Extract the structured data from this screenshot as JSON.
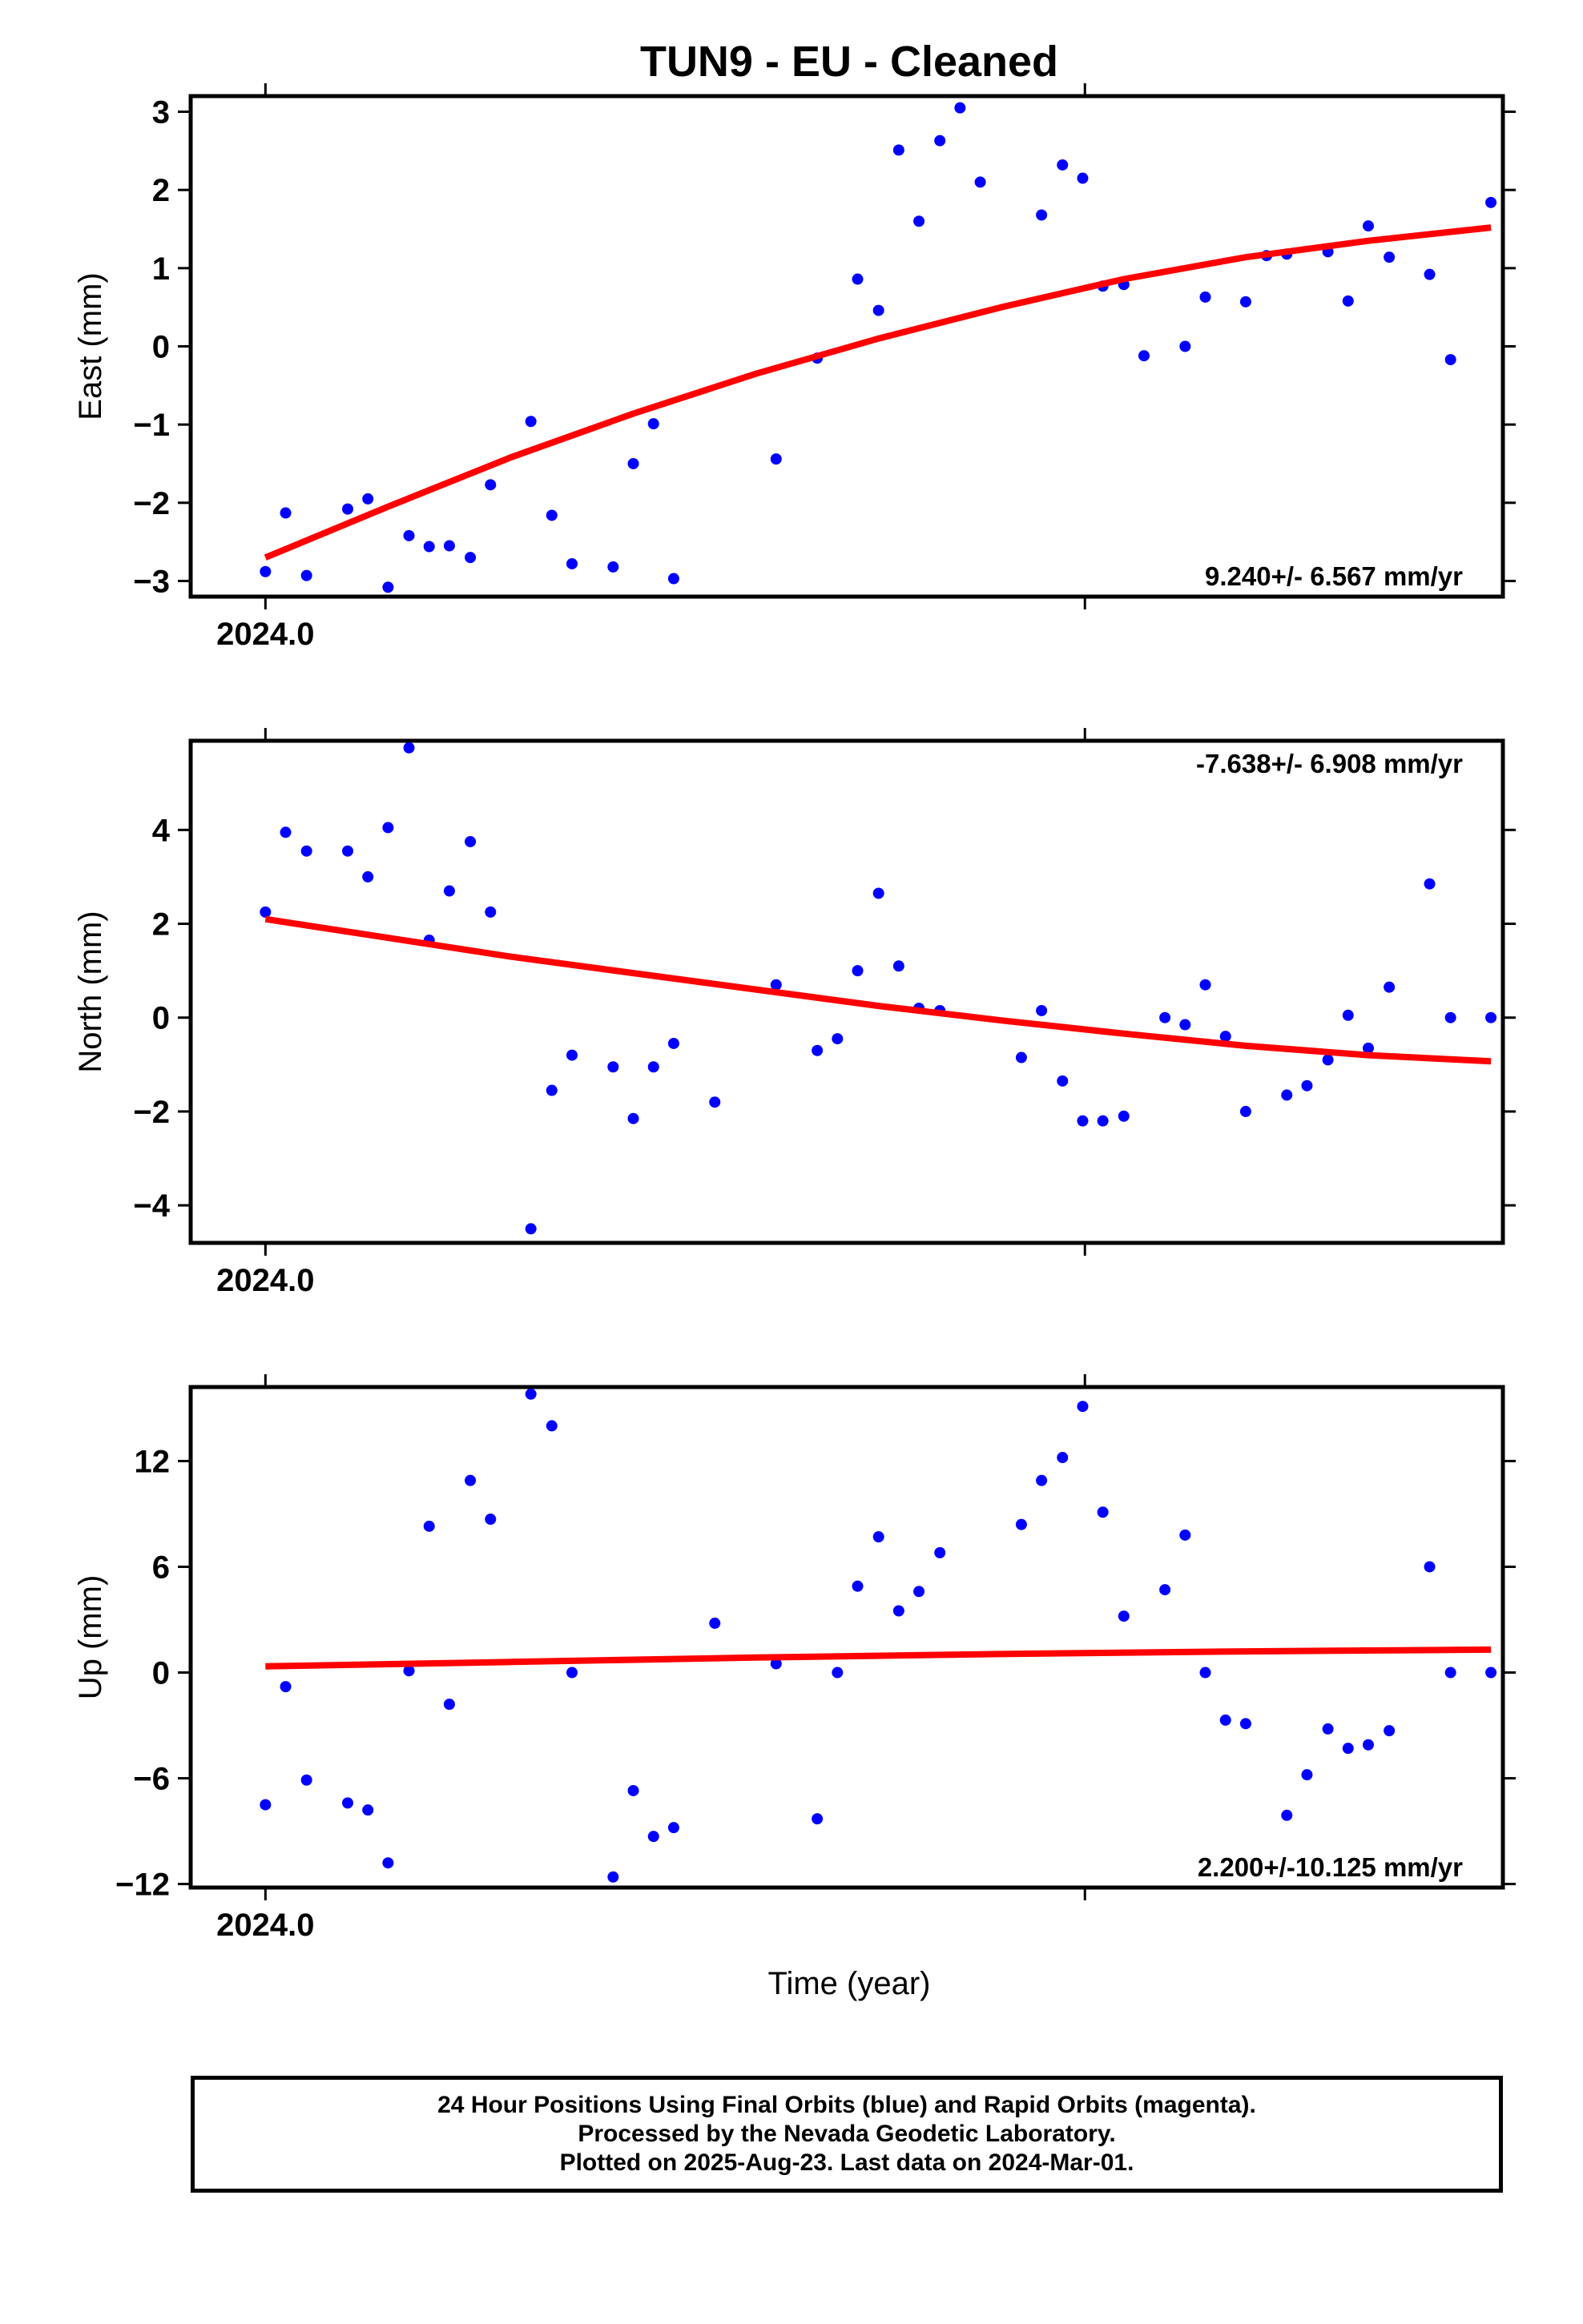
{
  "title": "TUN9  - EU - Cleaned",
  "xlabel": "Time (year)",
  "x_tick_label": "2024.0",
  "colors": {
    "points": "#0000ff",
    "fit": "#ff0000",
    "axes": "#000000"
  },
  "caption": [
    "24 Hour Positions Using Final Orbits (blue) and Rapid Orbits (magenta).",
    "Processed by the Nevada Geodetic Laboratory.",
    "Plotted on 2025-Aug-23. Last data on 2024-Mar-01."
  ],
  "chart_data": [
    {
      "type": "scatter",
      "name": "east",
      "ylabel": "East (mm)",
      "rate_label": "9.240+/- 6.567 mm/yr",
      "rate_position": "bottom-right",
      "xlim": [
        2023.99,
        2024.1655
      ],
      "ylim": [
        -3.2,
        3.2
      ],
      "yticks": [
        -3,
        -2,
        -1,
        0,
        1,
        2,
        3
      ],
      "x_ticks_unlabeled": [
        2024.1096
      ],
      "points": {
        "x": [
          2024.0,
          2024.0027,
          2024.0055,
          2024.011,
          2024.0137,
          2024.0164,
          2024.0192,
          2024.0219,
          2024.0246,
          2024.0274,
          2024.0301,
          2024.0355,
          2024.0383,
          2024.041,
          2024.0465,
          2024.0492,
          2024.0519,
          2024.0546,
          2024.0683,
          2024.0738,
          2024.0792,
          2024.082,
          2024.0847,
          2024.0874,
          2024.0902,
          2024.0929,
          2024.0956,
          2024.1038,
          2024.1066,
          2024.1093,
          2024.112,
          2024.1148,
          2024.1175,
          2024.123,
          2024.1257,
          2024.1311,
          2024.1339,
          2024.1366,
          2024.1421,
          2024.1448,
          2024.1475,
          2024.1503,
          2024.1557,
          2024.1585,
          2024.1639
        ],
        "y": [
          -2.88,
          -2.13,
          -2.93,
          -2.08,
          -1.95,
          -3.08,
          -2.42,
          -2.56,
          -2.55,
          -2.7,
          -1.77,
          -0.96,
          -2.16,
          -2.78,
          -2.82,
          -1.5,
          -0.99,
          -2.97,
          -1.44,
          -0.15,
          0.86,
          0.46,
          2.51,
          1.6,
          2.63,
          3.05,
          2.1,
          1.68,
          2.32,
          2.15,
          0.77,
          0.79,
          -0.12,
          0.0,
          0.63,
          0.57,
          1.16,
          1.18,
          1.21,
          0.58,
          1.54,
          1.14,
          0.92,
          -0.17,
          1.84
        ]
      },
      "fit": {
        "x": [
          2024.0,
          2024.0164,
          2024.0328,
          2024.0492,
          2024.0656,
          2024.082,
          2024.0984,
          2024.1148,
          2024.1311,
          2024.1475,
          2024.1639
        ],
        "y": [
          -2.7,
          -2.05,
          -1.42,
          -0.86,
          -0.35,
          0.1,
          0.5,
          0.86,
          1.14,
          1.35,
          1.52
        ]
      }
    },
    {
      "type": "scatter",
      "name": "north",
      "ylabel": "North (mm)",
      "rate_label": "-7.638+/- 6.908 mm/yr",
      "rate_position": "top-right",
      "xlim": [
        2023.99,
        2024.1655
      ],
      "ylim": [
        -4.8,
        5.9
      ],
      "yticks": [
        -4,
        -2,
        0,
        2,
        4
      ],
      "x_ticks_unlabeled": [
        2024.1096
      ],
      "points": {
        "x": [
          2024.0,
          2024.0027,
          2024.0055,
          2024.011,
          2024.0137,
          2024.0164,
          2024.0192,
          2024.0219,
          2024.0246,
          2024.0274,
          2024.0301,
          2024.0355,
          2024.0383,
          2024.041,
          2024.0465,
          2024.0492,
          2024.0519,
          2024.0546,
          2024.0601,
          2024.0683,
          2024.0738,
          2024.0765,
          2024.0792,
          2024.082,
          2024.0847,
          2024.0874,
          2024.0902,
          2024.1011,
          2024.1038,
          2024.1066,
          2024.1093,
          2024.112,
          2024.1148,
          2024.1203,
          2024.123,
          2024.1257,
          2024.1284,
          2024.1311,
          2024.1366,
          2024.1393,
          2024.1421,
          2024.1448,
          2024.1475,
          2024.1503,
          2024.1557,
          2024.1585,
          2024.1639
        ],
        "y": [
          2.25,
          3.95,
          3.55,
          3.55,
          3.0,
          4.05,
          5.75,
          1.65,
          2.7,
          3.75,
          2.25,
          -4.5,
          -1.55,
          -0.8,
          -1.05,
          -2.15,
          -1.05,
          -0.55,
          -1.8,
          0.7,
          -0.7,
          -0.45,
          1.0,
          2.65,
          1.1,
          0.2,
          0.15,
          -0.85,
          0.15,
          -1.35,
          -2.2,
          -2.2,
          -2.1,
          0.0,
          -0.15,
          0.7,
          -0.4,
          -2.0,
          -1.65,
          -1.45,
          -0.9,
          0.05,
          -0.65,
          0.65,
          2.85,
          0.0,
          0.0
        ]
      },
      "fit": {
        "x": [
          2024.0,
          2024.0164,
          2024.0328,
          2024.0492,
          2024.0656,
          2024.082,
          2024.0984,
          2024.1148,
          2024.1311,
          2024.1475,
          2024.1639
        ],
        "y": [
          2.1,
          1.7,
          1.3,
          0.95,
          0.6,
          0.25,
          -0.06,
          -0.34,
          -0.6,
          -0.8,
          -0.93
        ]
      }
    },
    {
      "type": "scatter",
      "name": "up",
      "ylabel": "Up (mm)",
      "rate_label": "2.200+/-10.125 mm/yr",
      "rate_position": "bottom-right",
      "xlim": [
        2023.99,
        2024.1655
      ],
      "ylim": [
        -12.2,
        16.2
      ],
      "yticks": [
        -12,
        -6,
        0,
        6,
        12
      ],
      "x_ticks_unlabeled": [
        2024.1096
      ],
      "points": {
        "x": [
          2024.0,
          2024.0027,
          2024.0055,
          2024.011,
          2024.0137,
          2024.0164,
          2024.0192,
          2024.0219,
          2024.0246,
          2024.0274,
          2024.0301,
          2024.0355,
          2024.0383,
          2024.041,
          2024.0465,
          2024.0492,
          2024.0519,
          2024.0546,
          2024.0601,
          2024.0683,
          2024.0738,
          2024.0765,
          2024.0792,
          2024.082,
          2024.0847,
          2024.0874,
          2024.0902,
          2024.1011,
          2024.1038,
          2024.1066,
          2024.1093,
          2024.112,
          2024.1148,
          2024.1203,
          2024.123,
          2024.1257,
          2024.1284,
          2024.1311,
          2024.1366,
          2024.1393,
          2024.1421,
          2024.1448,
          2024.1475,
          2024.1503,
          2024.1557,
          2024.1585,
          2024.1639
        ],
        "y": [
          -7.5,
          -0.8,
          -6.1,
          -7.4,
          -7.8,
          -10.8,
          0.1,
          8.3,
          -1.8,
          10.9,
          8.7,
          15.8,
          14.0,
          0.0,
          -11.6,
          -6.7,
          -9.3,
          -8.8,
          2.8,
          0.5,
          -8.3,
          0.0,
          4.9,
          7.7,
          3.5,
          4.6,
          6.8,
          8.4,
          10.9,
          12.2,
          15.1,
          9.1,
          3.2,
          4.7,
          7.8,
          0.0,
          -2.7,
          -2.9,
          -8.1,
          -5.8,
          -3.2,
          -4.3,
          -4.1,
          -3.3,
          6.0,
          0.0,
          0.0
        ]
      },
      "fit": {
        "x": [
          2024.0,
          2024.0328,
          2024.0656,
          2024.0984,
          2024.1311,
          2024.1639
        ],
        "y": [
          0.35,
          0.6,
          0.85,
          1.05,
          1.2,
          1.3
        ]
      }
    }
  ]
}
